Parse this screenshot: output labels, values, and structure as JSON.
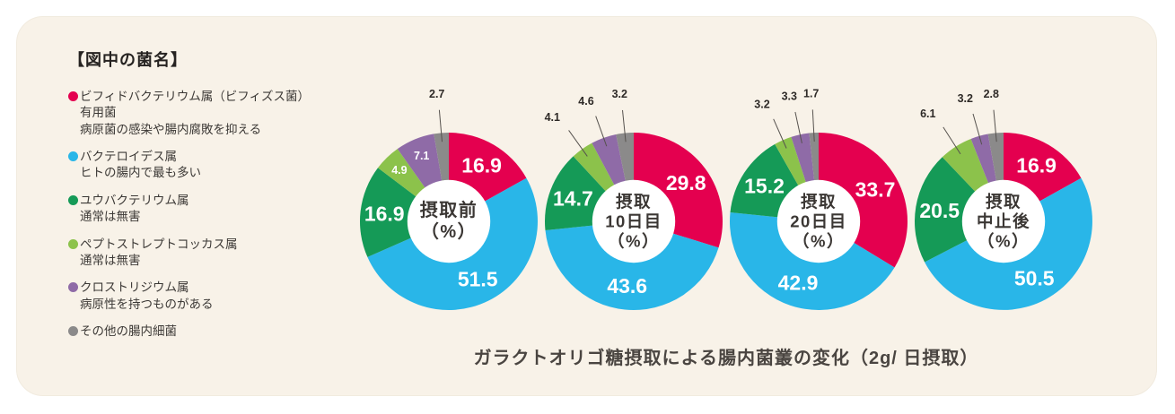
{
  "panel": {
    "background": "#f8f2e8",
    "page_background": "#ffffff"
  },
  "legend": {
    "title": "【図中の菌名】",
    "items": [
      {
        "color": "#e4004f",
        "name": "ビフィドバクテリウム属（ビフィズス菌）",
        "desc": [
          "有用菌",
          "病原菌の感染や腸内腐敗を抑える"
        ]
      },
      {
        "color": "#29b6e8",
        "name": "バクテロイデス属",
        "desc": [
          "ヒトの腸内で最も多い"
        ]
      },
      {
        "color": "#159a57",
        "name": "ユウバクテリウム属",
        "desc": [
          "通常は無害"
        ]
      },
      {
        "color": "#8cc24b",
        "name": "ペプトストレプトコッカス属",
        "desc": [
          "通常は無害"
        ]
      },
      {
        "color": "#8f6ba7",
        "name": "クロストリジウム属",
        "desc": [
          "病原性を持つものがある"
        ]
      },
      {
        "color": "#8b8a8a",
        "name": "その他の腸内細菌",
        "desc": []
      }
    ]
  },
  "caption": "ガラクトオリゴ糖摂取による腸内菌叢の変化（2g/ 日摂取）",
  "chart_data": [
    {
      "type": "pie",
      "title": "摂取前（%）",
      "center_lines": [
        "摂取前",
        "（%）"
      ],
      "categories": [
        "ビフィドバクテリウム属（ビフィズス菌）",
        "バクテロイデス属",
        "ユウバクテリウム属",
        "ペプトストレプトコッカス属",
        "クロストリジウム属",
        "その他の腸内細菌"
      ],
      "values": [
        16.9,
        51.5,
        16.9,
        4.9,
        7.1,
        2.7
      ],
      "colors": [
        "#e4004f",
        "#29b6e8",
        "#159a57",
        "#8cc24b",
        "#8f6ba7",
        "#8b8a8a"
      ],
      "unit": "%",
      "start_angle_deg": 0,
      "direction": "clockwise",
      "donut_hole_ratio": 0.46,
      "label_outside_indices": [
        5
      ]
    },
    {
      "type": "pie",
      "title": "摂取10日目（%）",
      "center_lines": [
        "摂取",
        "10日目",
        "（%）"
      ],
      "categories": [
        "ビフィドバクテリウム属（ビフィズス菌）",
        "バクテロイデス属",
        "ユウバクテリウム属",
        "ペプトストレプトコッカス属",
        "クロストリジウム属",
        "その他の腸内細菌"
      ],
      "values": [
        29.8,
        43.6,
        14.7,
        4.1,
        4.6,
        3.2
      ],
      "colors": [
        "#e4004f",
        "#29b6e8",
        "#159a57",
        "#8cc24b",
        "#8f6ba7",
        "#8b8a8a"
      ],
      "unit": "%",
      "start_angle_deg": 0,
      "direction": "clockwise",
      "donut_hole_ratio": 0.46,
      "label_outside_indices": [
        3,
        4,
        5
      ]
    },
    {
      "type": "pie",
      "title": "摂取20日目（%）",
      "center_lines": [
        "摂取",
        "20日目",
        "（%）"
      ],
      "categories": [
        "ビフィドバクテリウム属（ビフィズス菌）",
        "バクテロイデス属",
        "ユウバクテリウム属",
        "ペプトストレプトコッカス属",
        "クロストリジウム属",
        "その他の腸内細菌"
      ],
      "values": [
        33.7,
        42.9,
        15.2,
        3.2,
        3.3,
        1.7
      ],
      "colors": [
        "#e4004f",
        "#29b6e8",
        "#159a57",
        "#8cc24b",
        "#8f6ba7",
        "#8b8a8a"
      ],
      "unit": "%",
      "start_angle_deg": 0,
      "direction": "clockwise",
      "donut_hole_ratio": 0.46,
      "label_outside_indices": [
        3,
        4,
        5
      ]
    },
    {
      "type": "pie",
      "title": "摂取中止後（%）",
      "center_lines": [
        "摂取",
        "中止後",
        "（%）"
      ],
      "categories": [
        "ビフィドバクテリウム属（ビフィズス菌）",
        "バクテロイデス属",
        "ユウバクテリウム属",
        "ペプトストレプトコッカス属",
        "クロストリジウム属",
        "その他の腸内細菌"
      ],
      "values": [
        16.9,
        50.5,
        20.5,
        6.1,
        3.2,
        2.8
      ],
      "colors": [
        "#e4004f",
        "#29b6e8",
        "#159a57",
        "#8cc24b",
        "#8f6ba7",
        "#8b8a8a"
      ],
      "unit": "%",
      "start_angle_deg": 0,
      "direction": "clockwise",
      "donut_hole_ratio": 0.46,
      "label_outside_indices": [
        3,
        4,
        5
      ]
    }
  ]
}
